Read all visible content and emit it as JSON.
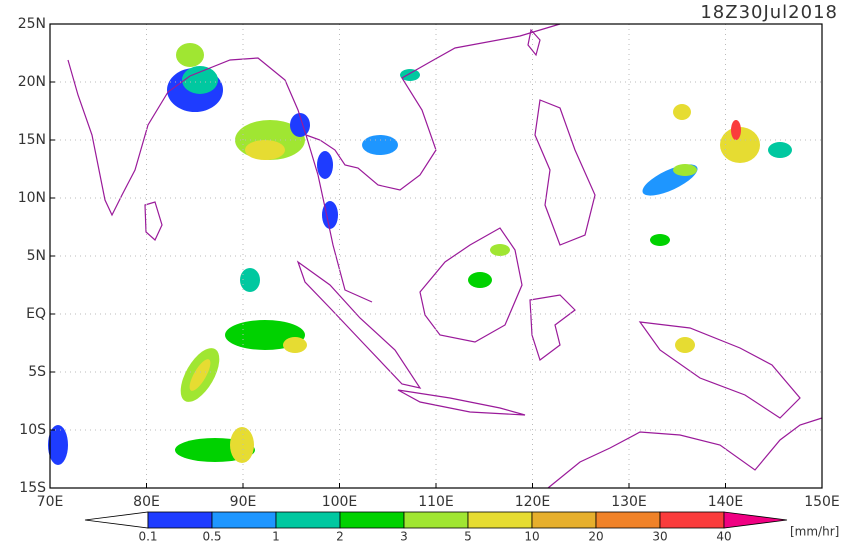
{
  "map": {
    "timestamp": "18Z30Jul2018",
    "xlim": [
      70,
      150
    ],
    "ylim": [
      -15,
      25
    ],
    "xticks": [
      {
        "value": 70,
        "label": "70E"
      },
      {
        "value": 80,
        "label": "80E"
      },
      {
        "value": 90,
        "label": "90E"
      },
      {
        "value": 100,
        "label": "100E"
      },
      {
        "value": 110,
        "label": "110E"
      },
      {
        "value": 120,
        "label": "120E"
      },
      {
        "value": 130,
        "label": "130E"
      },
      {
        "value": 140,
        "label": "140E"
      },
      {
        "value": 150,
        "label": "150E"
      }
    ],
    "yticks": [
      {
        "value": 25,
        "label": "25N"
      },
      {
        "value": 20,
        "label": "20N"
      },
      {
        "value": 15,
        "label": "15N"
      },
      {
        "value": 10,
        "label": "10N"
      },
      {
        "value": 5,
        "label": "5N"
      },
      {
        "value": 0,
        "label": "EQ"
      },
      {
        "value": -5,
        "label": "5S"
      },
      {
        "value": -10,
        "label": "10S"
      },
      {
        "value": -15,
        "label": "15S"
      }
    ],
    "grid": true,
    "colorbar": {
      "levels": [
        0.1,
        0.5,
        1,
        2,
        3,
        5,
        10,
        20,
        30,
        40
      ],
      "colors": [
        "#1e3cff",
        "#1e96ff",
        "#00c8a0",
        "#00d200",
        "#a0e632",
        "#e6dc32",
        "#e6af2d",
        "#f08228",
        "#fa3c3c",
        "#f00082"
      ],
      "unit": "[mm/hr]"
    }
  }
}
